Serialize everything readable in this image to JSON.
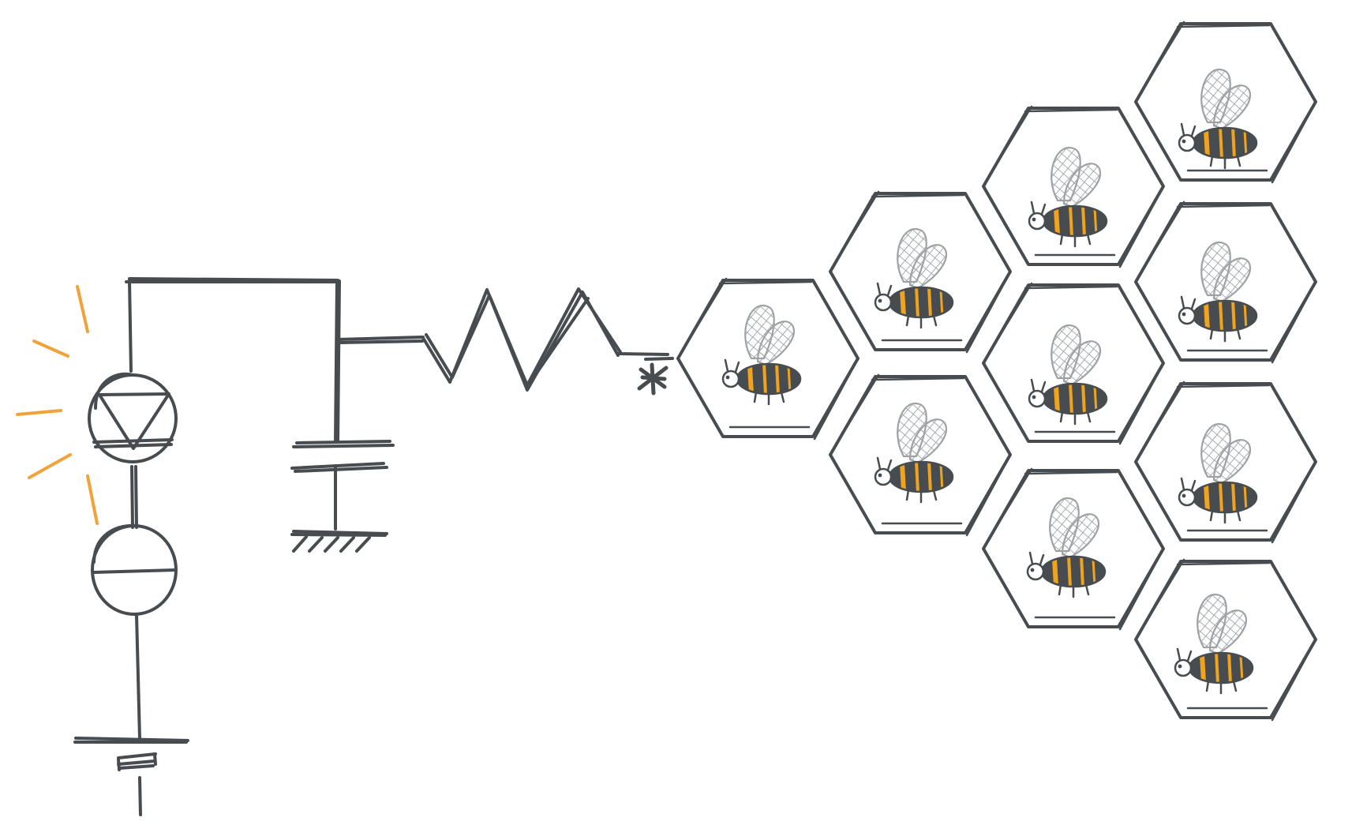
{
  "colors": {
    "ink": "#474c51",
    "glow": "#f0a33a",
    "bee_stripe": "#f0a31c",
    "bee_wing": "#9ea2a6",
    "background": "#ffffff"
  },
  "icons": {
    "light_rays": "light-rays-icon",
    "diode": "diode-icon",
    "current_source": "current-source-icon",
    "battery": "battery-icon",
    "capacitor": "capacitor-icon",
    "ground": "ground-icon",
    "resistor": "resistor-icon",
    "junction": "junction-icon",
    "honeycomb_cell": "honeycomb-cell-icon",
    "bee": "bee-icon"
  },
  "honeycomb": {
    "cell_count": 10,
    "bees_per_cell": 1
  }
}
